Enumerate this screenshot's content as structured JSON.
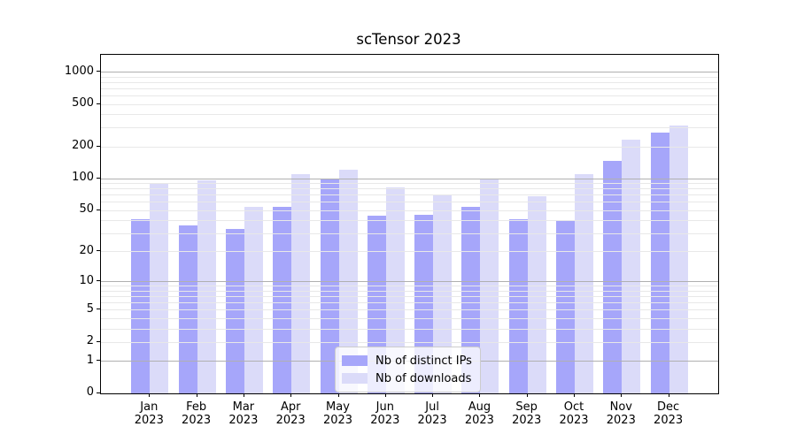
{
  "chart_data": {
    "type": "bar",
    "title": "scTensor 2023",
    "categories": [
      "Jan 2023",
      "Feb 2023",
      "Mar 2023",
      "Apr 2023",
      "May 2023",
      "Jun 2023",
      "Jul 2023",
      "Aug 2023",
      "Sep 2023",
      "Oct 2023",
      "Nov 2023",
      "Dec 2023"
    ],
    "months": [
      "Jan",
      "Feb",
      "Mar",
      "Apr",
      "May",
      "Jun",
      "Jul",
      "Aug",
      "Sep",
      "Oct",
      "Nov",
      "Dec"
    ],
    "year_label": "2023",
    "series": [
      {
        "name": "Nb of distinct IPs",
        "color": "#a6a6fa",
        "values": [
          41,
          36,
          33,
          54,
          100,
          44,
          45,
          54,
          41,
          40,
          145,
          267
        ]
      },
      {
        "name": "Nb of downloads",
        "color": "#dbdbf9",
        "values": [
          90,
          95,
          54,
          110,
          120,
          82,
          69,
          100,
          68,
          110,
          230,
          312
        ]
      }
    ],
    "xlabel": "",
    "ylabel": "",
    "y_scale": "log1p",
    "ylim": [
      0,
      1440
    ],
    "y_ticks": [
      0,
      1,
      2,
      5,
      10,
      20,
      50,
      100,
      200,
      500,
      1000
    ],
    "y_major_gridlines": [
      1,
      10,
      100,
      1000
    ],
    "y_minor_gridlines": [
      2,
      3,
      4,
      5,
      6,
      7,
      8,
      9,
      20,
      30,
      40,
      50,
      60,
      70,
      80,
      90,
      200,
      300,
      400,
      500,
      600,
      700,
      800,
      900
    ],
    "grid": "horizontal, grid drawn above bars",
    "legend_position": "lower center",
    "colors": {
      "bar_distinct_ips": "#a6a6fa",
      "bar_downloads": "#dbdbf9",
      "major_grid": "#b0b0b0",
      "minor_grid": "#e8e8e8",
      "axis_spine": "#000000",
      "text": "#000000",
      "legend_border": "#cccccc",
      "background": "#ffffff"
    }
  }
}
